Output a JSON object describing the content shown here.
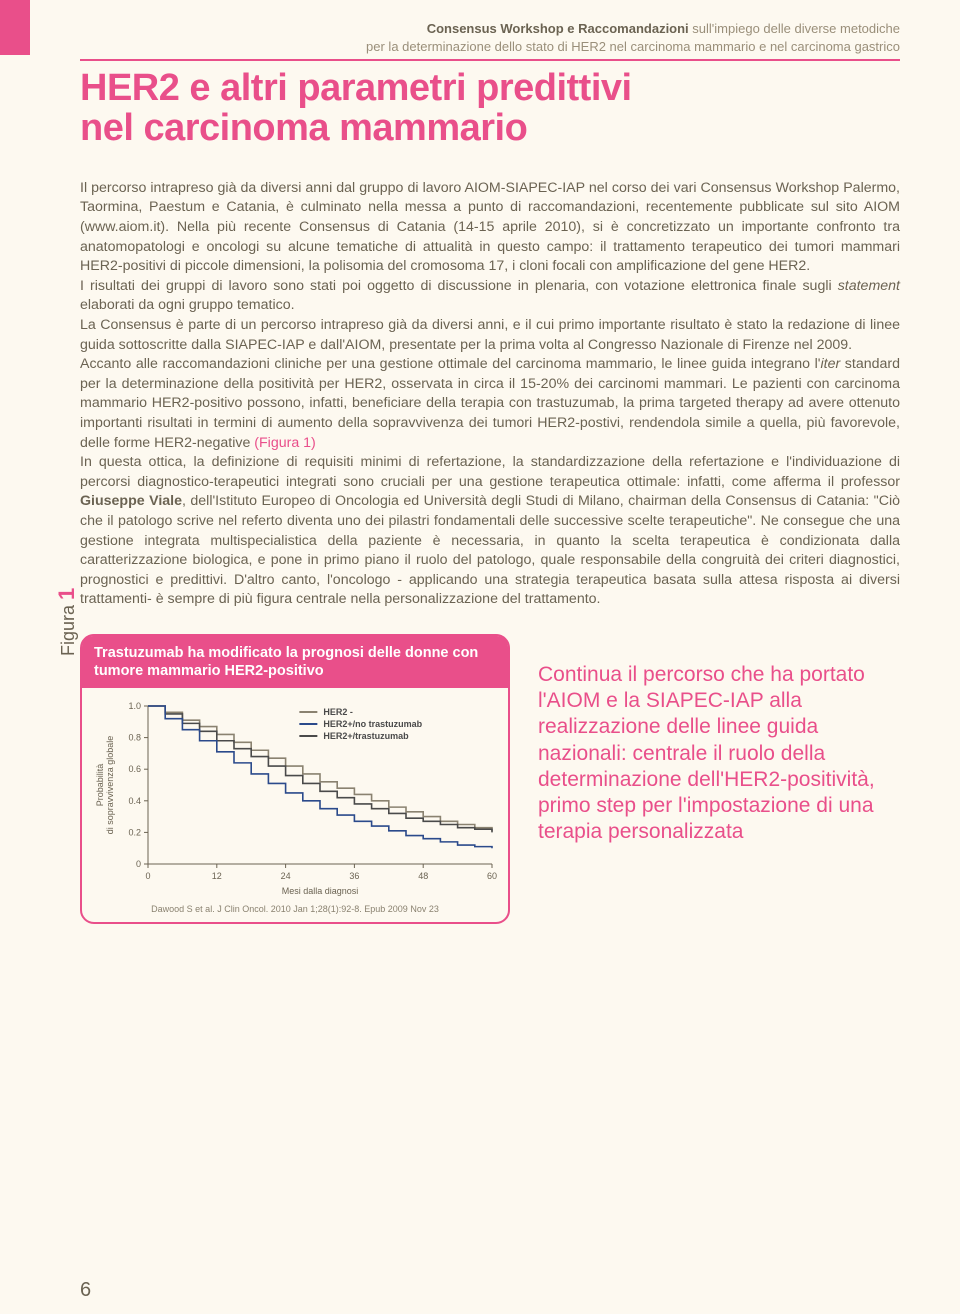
{
  "header": {
    "bold_part": "Consensus Workshop e Raccomandazioni",
    "line1_rest": " sull'impiego delle diverse metodiche",
    "line2": "per la determinazione dello stato di HER2 nel carcinoma mammario e nel carcinoma gastrico"
  },
  "title": {
    "line1": "HER2 e altri parametri predittivi",
    "line2": "nel carcinoma mammario"
  },
  "body_html": "Il percorso intrapreso già da diversi anni dal gruppo di lavoro AIOM-SIAPEC-IAP nel corso dei vari Consensus Workshop Palermo, Taormina, Paestum e Catania, è culminato nella messa a punto di raccomandazioni, recentemente pubblicate sul sito AIOM (www.aiom.it). Nella più recente Consensus di Catania (14-15 aprile 2010), si è concretizzato un importante confronto tra anatomopatologi e oncologi su alcune tematiche di attualità in questo campo: il trattamento terapeutico dei tumori mammari HER2-positivi di piccole dimensioni, la polisomia del cromosoma 17, i cloni focali con amplificazione del gene HER2.<br>I risultati dei gruppi di lavoro sono stati poi oggetto di discussione in plenaria, con votazione elettronica finale sugli <i>statement</i> elaborati da ogni gruppo tematico.<br>La Consensus è parte di un percorso intrapreso già da diversi anni, e il cui primo importante risultato è stato la redazione di linee guida sottoscritte dalla SIAPEC-IAP e dall'AIOM, presentate per la prima volta al Congresso Nazionale di Firenze nel 2009.<br>Accanto alle raccomandazioni cliniche per una gestione ottimale del carcinoma mammario, le linee guida integrano l'<i>iter</i> standard per la determinazione della positività per HER2, osservata in circa il 15-20% dei carcinomi mammari. Le pazienti con carcinoma mammario HER2-positivo possono, infatti, beneficiare della terapia con trastuzumab, la prima targeted therapy ad avere ottenuto importanti risultati in termini di aumento della sopravvivenza dei tumori HER2-postivi, rendendola simile a quella, più favorevole, delle forme HER2-negative <span class='figref'>(Figura 1)</span><br>In questa ottica, la definizione di requisiti minimi di refertazione, la standardizzazione della refertazione e l'individuazione di percorsi diagnostico-terapeutici integrati sono cruciali per una gestione terapeutica ottimale: infatti, come afferma il professor <b>Giuseppe Viale</b>, dell'Istituto Europeo di Oncologia ed Università degli Studi di Milano, chairman della Consensus di Catania: \"Ciò che il patologo scrive nel referto diventa uno dei pilastri fondamentali delle successive scelte terapeutiche\". Ne consegue che una gestione integrata multispecialistica della paziente è necessaria, in quanto la scelta terapeutica è condizionata dalla caratterizzazione biologica, e pone in primo piano il ruolo del patologo, quale responsabile della congruità dei criteri diagnostici, prognostici e predittivi. D'altro canto, l'oncologo - applicando una strategia terapeutica basata sulla attesa risposta ai diversi trattamenti- è sempre di più figura centrale nella personalizzazione del trattamento.",
  "figure": {
    "label_word": "Figura",
    "label_num": "1",
    "title": "Trastuzumab ha modificato la prognosi delle donne con tumore mammario HER2-positivo",
    "caption": "Dawood S et al. J Clin Oncol. 2010 Jan 1;28(1):92-8. Epub 2009 Nov 23",
    "chart": {
      "type": "line",
      "xlabel": "Mesi dalla diagnosi",
      "ylabel": "Probabilità di sopravvivenza globale",
      "xlim": [
        0,
        60
      ],
      "ylim": [
        0,
        1.0
      ],
      "xticks": [
        0,
        12,
        24,
        36,
        48,
        60
      ],
      "yticks": [
        0,
        0.2,
        0.4,
        0.6,
        0.8,
        1.0
      ],
      "ytick_labels": [
        "0",
        "0.2",
        "0.4",
        "0.6",
        "0.8",
        "1.0"
      ],
      "background_color": "#fdf9f0",
      "axis_color": "#6b6352",
      "label_fontsize": 9,
      "tick_fontsize": 9,
      "legend": {
        "position": "top-right-inset",
        "fontsize": 9,
        "items": [
          {
            "label": "HER2 -",
            "color": "#8a8270"
          },
          {
            "label": "HER2+/no trastuzumab",
            "color": "#2b4a8b"
          },
          {
            "label": "HER2+/trastuzumab",
            "color": "#4a4a4a"
          }
        ]
      },
      "series": [
        {
          "name": "HER2 -",
          "color": "#8a8270",
          "width": 1.6,
          "x": [
            0,
            3,
            6,
            9,
            12,
            15,
            18,
            21,
            24,
            27,
            30,
            33,
            36,
            39,
            42,
            45,
            48,
            51,
            54,
            57,
            60
          ],
          "y": [
            1.0,
            0.96,
            0.91,
            0.87,
            0.82,
            0.77,
            0.72,
            0.67,
            0.62,
            0.57,
            0.52,
            0.48,
            0.44,
            0.4,
            0.36,
            0.33,
            0.3,
            0.27,
            0.25,
            0.23,
            0.21
          ]
        },
        {
          "name": "HER2+/trastuzumab",
          "color": "#4a4a4a",
          "width": 1.6,
          "x": [
            0,
            3,
            6,
            9,
            12,
            15,
            18,
            21,
            24,
            27,
            30,
            33,
            36,
            39,
            42,
            45,
            48,
            51,
            54,
            57,
            60
          ],
          "y": [
            1.0,
            0.95,
            0.89,
            0.84,
            0.78,
            0.73,
            0.68,
            0.62,
            0.56,
            0.51,
            0.46,
            0.42,
            0.38,
            0.35,
            0.32,
            0.29,
            0.27,
            0.25,
            0.23,
            0.22,
            0.2
          ]
        },
        {
          "name": "HER2+/no trastuzumab",
          "color": "#2b4a8b",
          "width": 1.6,
          "x": [
            0,
            3,
            6,
            9,
            12,
            15,
            18,
            21,
            24,
            27,
            30,
            33,
            36,
            39,
            42,
            45,
            48,
            51,
            54,
            57,
            60
          ],
          "y": [
            1.0,
            0.92,
            0.85,
            0.78,
            0.71,
            0.64,
            0.57,
            0.51,
            0.45,
            0.4,
            0.35,
            0.31,
            0.27,
            0.24,
            0.21,
            0.18,
            0.16,
            0.14,
            0.12,
            0.11,
            0.1
          ]
        }
      ]
    }
  },
  "pull_quote": "Continua il percorso che ha portato l'AIOM e la SIAPEC-IAP alla realizzazione delle linee guida nazionali: centrale il ruolo della determinazione dell'HER2-positività, primo step per l'impostazione di una terapia personalizzata",
  "page_number": "6",
  "colors": {
    "accent": "#e94f8a",
    "body_text": "#6b6352",
    "background": "#fdf9f0"
  }
}
